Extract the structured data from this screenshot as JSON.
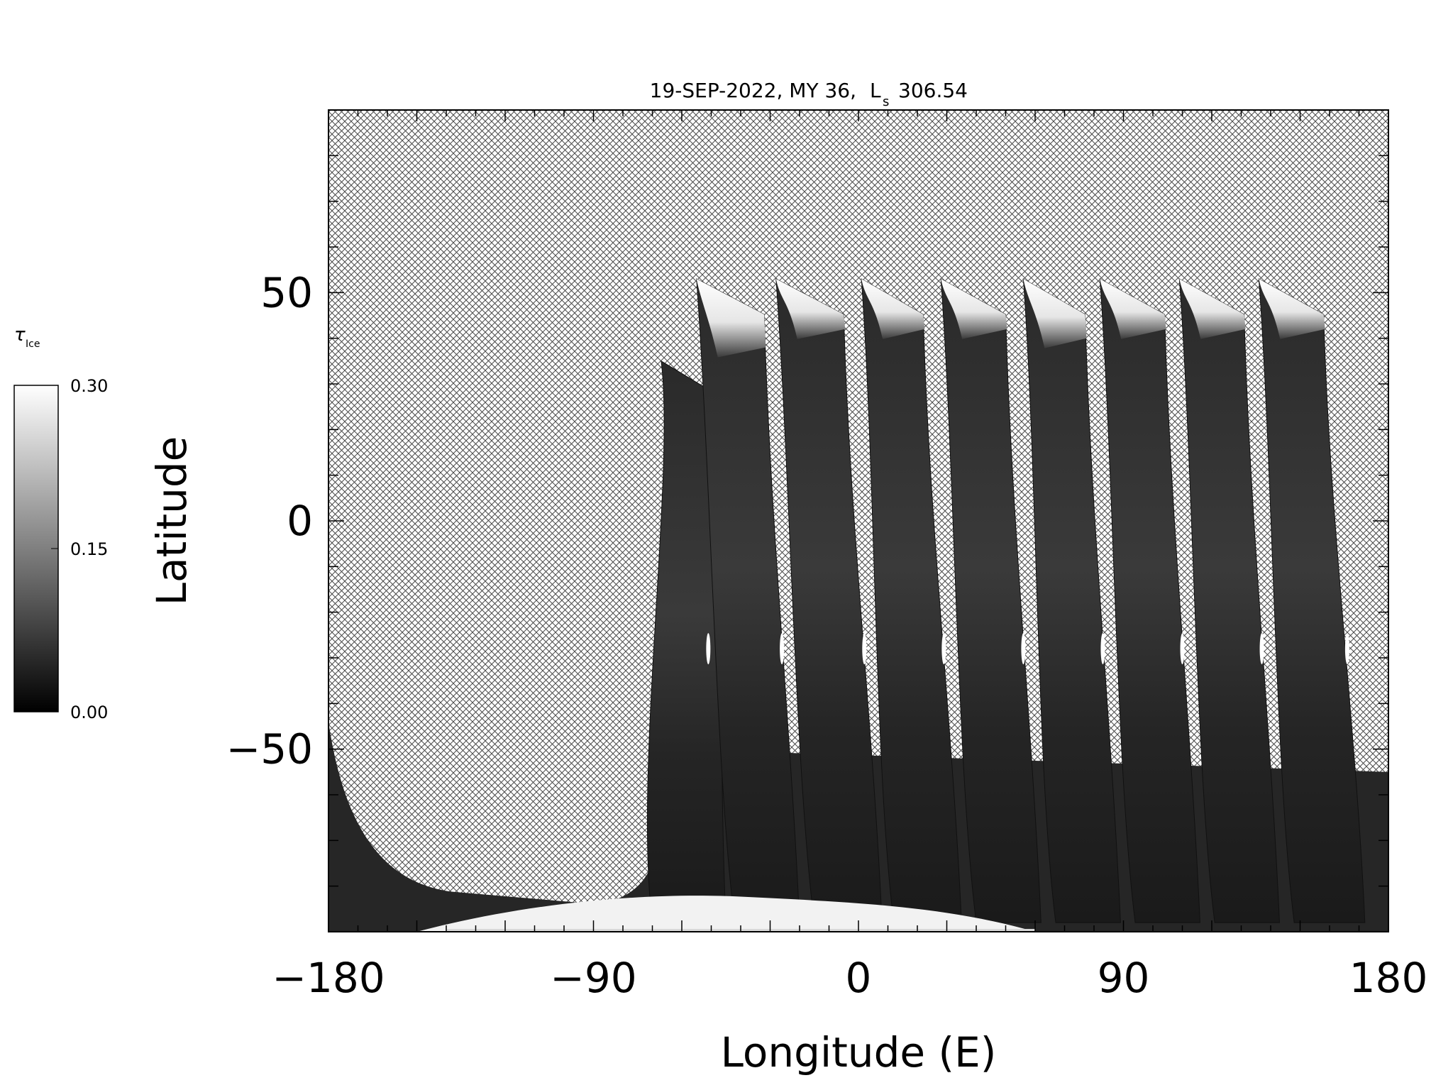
{
  "figure": {
    "title_date": "19-SEP-2022, MY 36,",
    "title_ls_symbol": "L",
    "title_ls_subscript": "s",
    "title_ls_value": "306.54"
  },
  "colorbar": {
    "symbol": "τ",
    "subscript": "Ice",
    "tick_labels": [
      "0.30",
      "0.15",
      "0.00"
    ],
    "range": [
      0.0,
      0.3
    ],
    "colormap": "grayscale",
    "color_low": "#000000",
    "color_high": "#ffffff"
  },
  "chart_data": {
    "type": "heatmap",
    "title": "19-SEP-2022, MY 36,  Ls 306.54",
    "xlabel": "Longitude (E)",
    "ylabel": "Latitude",
    "xlim": [
      -180,
      180
    ],
    "ylim": [
      -90,
      90
    ],
    "x_ticks": [
      -180,
      -90,
      0,
      90,
      180
    ],
    "x_tick_labels": [
      "−180",
      "−90",
      "0",
      "90",
      "180"
    ],
    "y_ticks": [
      -50,
      0,
      50
    ],
    "y_tick_labels": [
      "−50",
      "0",
      "50"
    ],
    "value_label": "τ Ice",
    "value_range": [
      0.0,
      0.3
    ],
    "no_data_fill": "crosshatch",
    "grid": false,
    "swaths": [
      {
        "lon_left_bottom": -70,
        "lon_right_bottom": -45,
        "lat_top": 35,
        "top_left_lon": -67,
        "top_right_lon": -47,
        "cap_lat": null
      },
      {
        "lon_left_bottom": -42,
        "lon_right_bottom": -20,
        "lat_top": 53,
        "top_left_lon": -55,
        "top_right_lon": -32,
        "cap_lat": 38
      },
      {
        "lon_left_bottom": -15,
        "lon_right_bottom": 8,
        "lat_top": 53,
        "top_left_lon": -28,
        "top_right_lon": -5,
        "cap_lat": 42
      },
      {
        "lon_left_bottom": 12,
        "lon_right_bottom": 35,
        "lat_top": 53,
        "top_left_lon": 1,
        "top_right_lon": 22,
        "cap_lat": 42
      },
      {
        "lon_left_bottom": 40,
        "lon_right_bottom": 62,
        "lat_top": 53,
        "top_left_lon": 28,
        "top_right_lon": 50,
        "cap_lat": 42
      },
      {
        "lon_left_bottom": 67,
        "lon_right_bottom": 89,
        "lat_top": 53,
        "top_left_lon": 56,
        "top_right_lon": 77,
        "cap_lat": 40
      },
      {
        "lon_left_bottom": 94,
        "lon_right_bottom": 116,
        "lat_top": 53,
        "top_left_lon": 82,
        "top_right_lon": 104,
        "cap_lat": 42
      },
      {
        "lon_left_bottom": 121,
        "lon_right_bottom": 143,
        "lat_top": 53,
        "top_left_lon": 109,
        "top_right_lon": 131,
        "cap_lat": 42
      },
      {
        "lon_left_bottom": 148,
        "lon_right_bottom": 172,
        "lat_top": 53,
        "top_left_lon": 136,
        "top_right_lon": 158,
        "cap_lat": 42
      }
    ],
    "southern_band": {
      "lat_bottom": -90,
      "lat_top_edge": -44,
      "lon_start": -180,
      "low_point_lon": -88,
      "low_point_lat": -84
    },
    "polar_cap": {
      "lat_top": -82,
      "lon_start": -150,
      "lon_end": 60
    }
  }
}
